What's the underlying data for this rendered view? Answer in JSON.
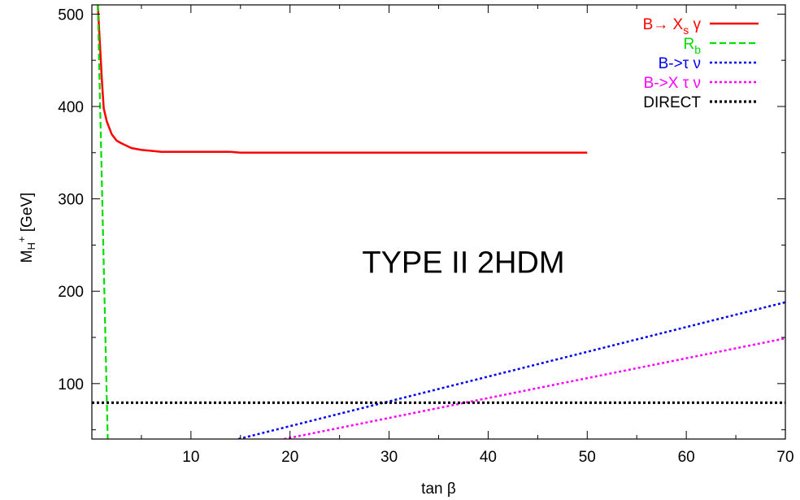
{
  "chart_data": {
    "type": "line",
    "title": "",
    "annotation": "TYPE II 2HDM",
    "xlabel": {
      "main": "tan ",
      "greek": "β"
    },
    "ylabel": {
      "m": "M",
      "sub": "H",
      "sup": "+",
      "unit": " [GeV]"
    },
    "xlim": [
      0,
      70
    ],
    "ylim": [
      40,
      510
    ],
    "xticks": [
      10,
      20,
      30,
      40,
      50,
      60,
      70
    ],
    "yticks": [
      100,
      200,
      300,
      400,
      500
    ],
    "grid": false,
    "legend_position": "top-right",
    "series": [
      {
        "name": "B→ X_s γ",
        "legend": {
          "text": "B→ X",
          "sub": "s",
          "greek": " γ"
        },
        "color": "#ff0000",
        "style": "solid",
        "x": [
          0.6,
          0.7,
          0.85,
          1.0,
          1.2,
          1.5,
          2.0,
          2.5,
          3.0,
          4.0,
          5.0,
          6.0,
          7.0,
          10.0,
          14.0,
          15.0,
          20.0,
          30.0,
          40.0,
          50.0
        ],
        "y": [
          510,
          490,
          460,
          430,
          398,
          384,
          370,
          363,
          360,
          355,
          353,
          352,
          351,
          351,
          351,
          350,
          350,
          350,
          350,
          350
        ]
      },
      {
        "name": "R_b",
        "legend": {
          "text": "R",
          "sub": "b"
        },
        "color": "#00dd00",
        "style": "dashed",
        "x": [
          0.6,
          1.6
        ],
        "y": [
          510,
          40
        ]
      },
      {
        "name": "B->τ ν",
        "legend": {
          "text": "B->",
          "greek": "τ ν"
        },
        "color": "#0000ee",
        "style": "dotted",
        "x": [
          14.8,
          70
        ],
        "y": [
          40,
          188
        ]
      },
      {
        "name": "B->X τ ν",
        "legend": {
          "text": "B->X ",
          "greek": "τ ν"
        },
        "color": "#ff00ff",
        "style": "dotted",
        "x": [
          19.4,
          70
        ],
        "y": [
          40,
          149
        ]
      },
      {
        "name": "DIRECT",
        "legend": {
          "text": "DIRECT"
        },
        "color": "#000000",
        "style": "dotted-heavy",
        "x": [
          0,
          70
        ],
        "y": [
          79.3,
          79.3
        ]
      }
    ]
  }
}
